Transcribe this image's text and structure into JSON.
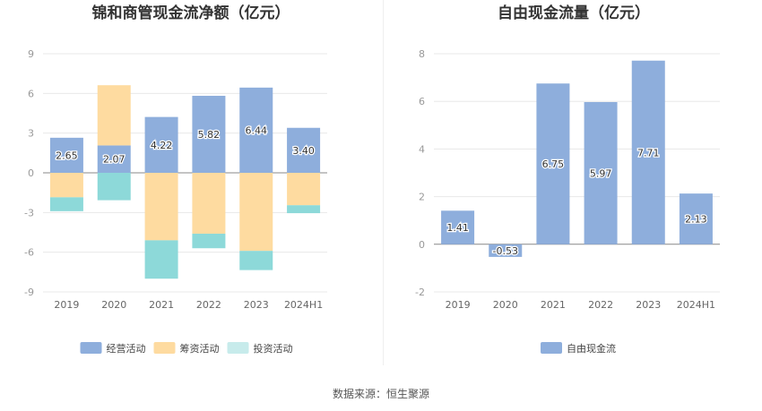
{
  "chart_data": [
    {
      "type": "bar",
      "stacked": true,
      "title": "锦和商管现金流净额（亿元）",
      "categories": [
        "2019",
        "2020",
        "2021",
        "2022",
        "2023",
        "2024H1"
      ],
      "ylim": [
        -9,
        9
      ],
      "yticks": [
        "9",
        "6",
        "3",
        "0",
        "-3",
        "-6",
        "-9"
      ],
      "grid": true,
      "legend_position": "bottom",
      "series": [
        {
          "name": "经营活动",
          "color": "#8eaedc",
          "values": [
            2.65,
            2.07,
            4.22,
            5.82,
            6.44,
            3.4
          ],
          "labels": [
            "2.65",
            "2.07",
            "4.22",
            "5.82",
            "6.44",
            "3.40"
          ]
        },
        {
          "name": "筹资活动",
          "color": "#fedba0",
          "values": [
            -1.85,
            4.55,
            -5.1,
            -4.6,
            -5.9,
            -2.45
          ]
        },
        {
          "name": "投资活动",
          "color": "#8dd9d9",
          "values": [
            -1.05,
            -2.07,
            -2.9,
            -1.1,
            -1.45,
            -0.6
          ]
        }
      ]
    },
    {
      "type": "bar",
      "title": "自由现金流量（亿元）",
      "categories": [
        "2019",
        "2020",
        "2021",
        "2022",
        "2023",
        "2024H1"
      ],
      "ylim": [
        -2,
        8
      ],
      "yticks": [
        "8",
        "6",
        "4",
        "2",
        "0",
        "-2"
      ],
      "grid": true,
      "legend_position": "bottom",
      "series": [
        {
          "name": "自由现金流",
          "color": "#8eaedc",
          "values": [
            1.41,
            -0.53,
            6.75,
            5.97,
            7.71,
            2.13
          ],
          "labels": [
            "1.41",
            "-0.53",
            "6.75",
            "5.97",
            "7.71",
            "2.13"
          ]
        }
      ]
    }
  ],
  "source": "数据来源：恒生聚源"
}
